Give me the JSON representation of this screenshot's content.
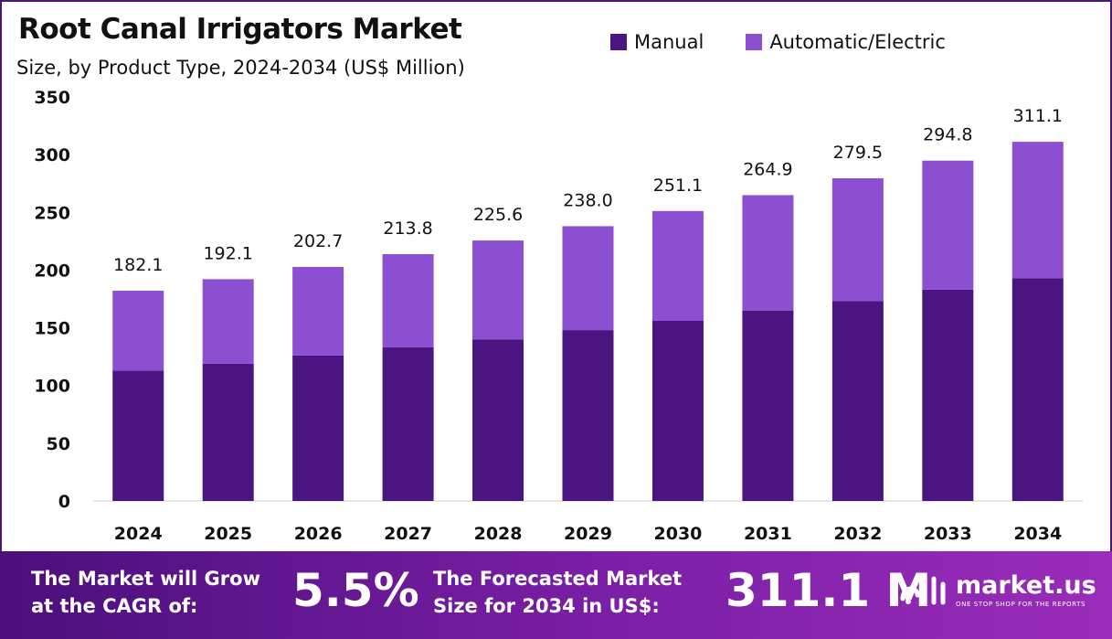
{
  "header": {
    "title": "Root Canal Irrigators Market",
    "subtitle": "Size, by Product Type, 2024-2034 (US$ Million)"
  },
  "legend": [
    {
      "label": "Manual",
      "color": "#4a1580"
    },
    {
      "label": "Automatic/Electric",
      "color": "#8c4fd2"
    }
  ],
  "chart_data": {
    "type": "bar",
    "stacked": true,
    "categories": [
      "2024",
      "2025",
      "2026",
      "2027",
      "2028",
      "2029",
      "2030",
      "2031",
      "2032",
      "2033",
      "2034"
    ],
    "series": [
      {
        "name": "Manual",
        "color": "#4a1580",
        "values": [
          113,
          119,
          126,
          133,
          140,
          148,
          156,
          165,
          173,
          183,
          193
        ]
      },
      {
        "name": "Automatic/Electric",
        "color": "#8c4fd2",
        "values": [
          69.1,
          73.1,
          76.7,
          80.8,
          85.6,
          90.0,
          95.1,
          99.9,
          106.5,
          111.8,
          118.1
        ]
      }
    ],
    "totals": [
      182.1,
      192.1,
      202.7,
      213.8,
      225.6,
      238.0,
      251.1,
      264.9,
      279.5,
      294.8,
      311.1
    ],
    "total_labels": [
      "182.1",
      "192.1",
      "202.7",
      "213.8",
      "225.6",
      "238.0",
      "251.1",
      "264.9",
      "279.5",
      "294.8",
      "311.1"
    ],
    "y_ticks": [
      "0",
      "50",
      "100",
      "150",
      "200",
      "250",
      "300",
      "350"
    ],
    "ylim": [
      0,
      350
    ],
    "grid": false,
    "legend_position": "top-right"
  },
  "footer": {
    "cagr_label_line1": "The Market will Grow",
    "cagr_label_line2": "at the CAGR of:",
    "cagr_value": "5.5%",
    "forecast_label_line1": "The Forecasted Market",
    "forecast_label_line2": "Size for 2034 in US$:",
    "forecast_value": "311.1 M",
    "brand_name": "market.us",
    "brand_tagline": "ONE STOP SHOP FOR THE REPORTS"
  }
}
